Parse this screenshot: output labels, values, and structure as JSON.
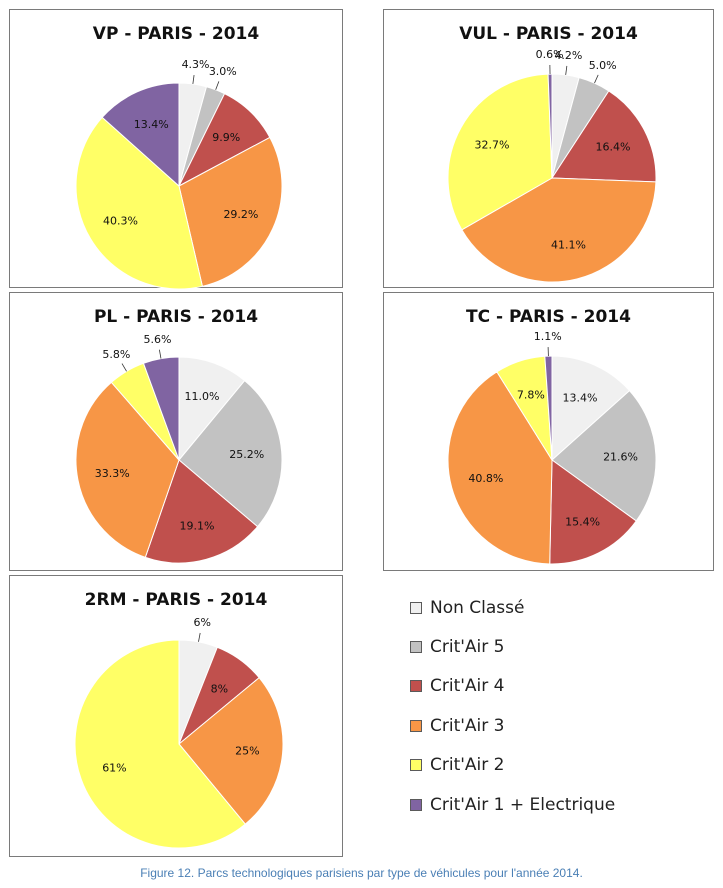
{
  "chart_data": [
    {
      "type": "pie",
      "title": "VP - PARIS - 2014",
      "categories": [
        "Non Classé",
        "Crit'Air 5",
        "Crit'Air 4",
        "Crit'Air 3",
        "Crit'Air 2",
        "Crit'Air 1 + Electrique"
      ],
      "values": [
        4.3,
        3.0,
        9.9,
        29.2,
        40.3,
        13.4
      ],
      "labels": [
        "4.3%",
        "3.0%",
        "9.9%",
        "29.2%",
        "40.3%",
        "13.4%"
      ]
    },
    {
      "type": "pie",
      "title": "VUL - PARIS - 2014",
      "categories": [
        "Non Classé",
        "Crit'Air 5",
        "Crit'Air 4",
        "Crit'Air 3",
        "Crit'Air 2",
        "Crit'Air 1 + Electrique"
      ],
      "values": [
        4.2,
        5.0,
        16.4,
        41.1,
        32.7,
        0.6
      ],
      "labels": [
        "4.2%",
        "5.0%",
        "16.4%",
        "41.1%",
        "32.7%",
        "0.6%"
      ]
    },
    {
      "type": "pie",
      "title": "PL - PARIS - 2014",
      "categories": [
        "Non Classé",
        "Crit'Air 5",
        "Crit'Air 4",
        "Crit'Air 3",
        "Crit'Air 2",
        "Crit'Air 1 + Electrique"
      ],
      "values": [
        11.0,
        25.2,
        19.1,
        33.3,
        5.8,
        5.6
      ],
      "labels": [
        "11.0%",
        "25.2%",
        "19.1%",
        "33.3%",
        "5.8%",
        "5.6%"
      ]
    },
    {
      "type": "pie",
      "title": "TC - PARIS - 2014",
      "categories": [
        "Non Classé",
        "Crit'Air 5",
        "Crit'Air 4",
        "Crit'Air 3",
        "Crit'Air 2",
        "Crit'Air 1 + Electrique"
      ],
      "values": [
        13.4,
        21.6,
        15.4,
        40.8,
        7.8,
        1.1
      ],
      "labels": [
        "13.4%",
        "21.6%",
        "15.4%",
        "40.8%",
        "7.8%",
        "1.1%"
      ]
    },
    {
      "type": "pie",
      "title": "2RM - PARIS - 2014",
      "categories": [
        "Non Classé",
        "Crit'Air 5",
        "Crit'Air 4",
        "Crit'Air 3",
        "Crit'Air 2",
        "Crit'Air 1 + Electrique"
      ],
      "values": [
        6,
        0,
        8,
        25,
        61,
        0
      ],
      "labels": [
        "6%",
        "",
        "8%",
        "25%",
        "61%",
        ""
      ]
    }
  ],
  "legend": {
    "placement": "bottom-right",
    "items": [
      {
        "label": "Non Classé",
        "color": "#f0f0f0"
      },
      {
        "label": "Crit'Air 5",
        "color": "#c2c2c2"
      },
      {
        "label": "Crit'Air 4",
        "color": "#c0504d"
      },
      {
        "label": "Crit'Air 3",
        "color": "#f79646"
      },
      {
        "label": "Crit'Air 2",
        "color": "#ffff66"
      },
      {
        "label": "Crit'Air 1 + Electrique",
        "color": "#8064a2"
      }
    ]
  },
  "caption": "Figure 12. Parcs technologiques parisiens par type de véhicules pour l'année 2014."
}
